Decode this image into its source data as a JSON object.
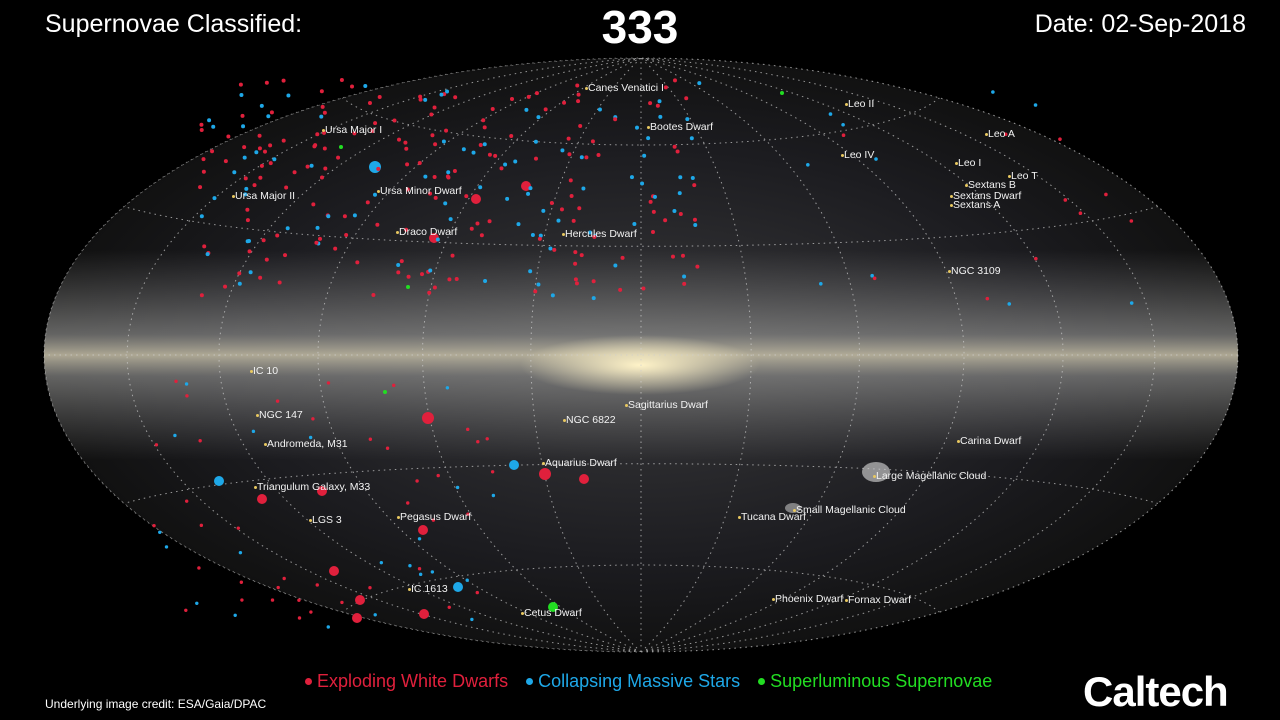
{
  "header": {
    "title_label": "Supernovae Classified:",
    "count": "333",
    "date": "Date: 02-Sep-2018"
  },
  "map": {
    "projection": "all-sky galactic",
    "labels": [
      "Canes Venatici I",
      "Ursa Major I",
      "Bootes Dwarf",
      "Leo II",
      "Leo A",
      "Leo IV",
      "Leo I",
      "Leo T",
      "Sextans B",
      "Sextans Dwarf",
      "Sextans A",
      "Ursa Major II",
      "Ursa Minor Dwarf",
      "Draco Dwarf",
      "Hercules Dwarf",
      "NGC 3109",
      "IC 10",
      "Sagittarius Dwarf",
      "NGC 147",
      "NGC 6822",
      "Andromeda, M31",
      "Carina Dwarf",
      "Aquarius Dwarf",
      "Large Magellanic Cloud",
      "Triangulum Galaxy, M33",
      "Small Magellanic Cloud",
      "LGS 3",
      "Pegasus Dwarf",
      "Tucana Dwarf",
      "IC 1613",
      "Phoenix Dwarf",
      "Fornax Dwarf",
      "Cetus Dwarf"
    ]
  },
  "legend": [
    {
      "label": "Exploding White Dwarfs",
      "color": "#e0203c"
    },
    {
      "label": "Collapsing Massive Stars",
      "color": "#1ea8e8"
    },
    {
      "label": "Superluminous Supernovae",
      "color": "#22dd22"
    }
  ],
  "footer": {
    "credit": "Underlying image credit: ESA/Gaia/DPAC",
    "logo": "Caltech"
  }
}
